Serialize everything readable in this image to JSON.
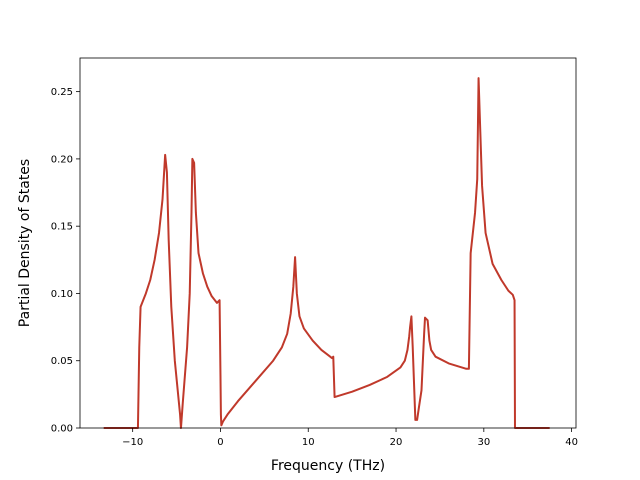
{
  "chart_data": {
    "type": "line",
    "title": "",
    "xlabel": "Frequency (THz)",
    "ylabel": "Partial Density of States",
    "xlim": [
      -16,
      40.5
    ],
    "ylim": [
      0,
      0.275
    ],
    "grid": false,
    "xticks": [
      -10,
      0,
      10,
      20,
      30,
      40
    ],
    "xtick_labels": [
      "−10",
      "0",
      "10",
      "20",
      "30",
      "40"
    ],
    "yticks": [
      0.0,
      0.05,
      0.1,
      0.15,
      0.2,
      0.25
    ],
    "ytick_labels": [
      "0.00",
      "0.05",
      "0.10",
      "0.15",
      "0.20",
      "0.25"
    ],
    "series": [
      {
        "color": "#c0392b",
        "x": [
          -13.3,
          -9.4,
          -9.25,
          -9.1,
          -8.5,
          -8.0,
          -7.5,
          -7.0,
          -6.6,
          -6.3,
          -6.1,
          -5.9,
          -5.6,
          -5.2,
          -4.6,
          -4.5,
          -4.3,
          -3.8,
          -3.5,
          -3.3,
          -3.2,
          -3.0,
          -2.8,
          -2.5,
          -2.0,
          -1.5,
          -1.0,
          -0.4,
          -0.1,
          0.0,
          0.05,
          0.1,
          0.3,
          0.8,
          2.0,
          4.0,
          6.0,
          7.0,
          7.6,
          8.0,
          8.3,
          8.5,
          8.7,
          9.0,
          9.5,
          10.5,
          11.5,
          12.3,
          12.7,
          12.85,
          13.0,
          15.0,
          17.0,
          19.0,
          20.5,
          21.0,
          21.3,
          21.5,
          21.6,
          21.75,
          21.9,
          22.2,
          22.4,
          22.6,
          22.9,
          23.2,
          23.3,
          23.6,
          23.8,
          24.0,
          24.5,
          26.0,
          28.0,
          28.3,
          28.5,
          29.0,
          29.25,
          29.4,
          29.6,
          29.8,
          30.2,
          31.0,
          32.0,
          32.8,
          33.3,
          33.5,
          33.55,
          37.5
        ],
        "y": [
          0.0,
          0.0,
          0.06,
          0.09,
          0.1,
          0.11,
          0.125,
          0.145,
          0.17,
          0.203,
          0.19,
          0.14,
          0.09,
          0.05,
          0.01,
          0.0,
          0.018,
          0.06,
          0.1,
          0.16,
          0.2,
          0.197,
          0.16,
          0.13,
          0.115,
          0.105,
          0.098,
          0.093,
          0.095,
          0.04,
          0.01,
          0.002,
          0.005,
          0.01,
          0.02,
          0.035,
          0.05,
          0.06,
          0.07,
          0.085,
          0.105,
          0.127,
          0.1,
          0.083,
          0.074,
          0.065,
          0.058,
          0.054,
          0.052,
          0.053,
          0.023,
          0.027,
          0.032,
          0.038,
          0.045,
          0.05,
          0.058,
          0.068,
          0.075,
          0.083,
          0.06,
          0.006,
          0.006,
          0.015,
          0.028,
          0.07,
          0.082,
          0.08,
          0.065,
          0.058,
          0.053,
          0.048,
          0.044,
          0.044,
          0.13,
          0.16,
          0.185,
          0.26,
          0.22,
          0.18,
          0.145,
          0.122,
          0.11,
          0.102,
          0.099,
          0.095,
          0.0,
          0.0
        ]
      }
    ]
  }
}
